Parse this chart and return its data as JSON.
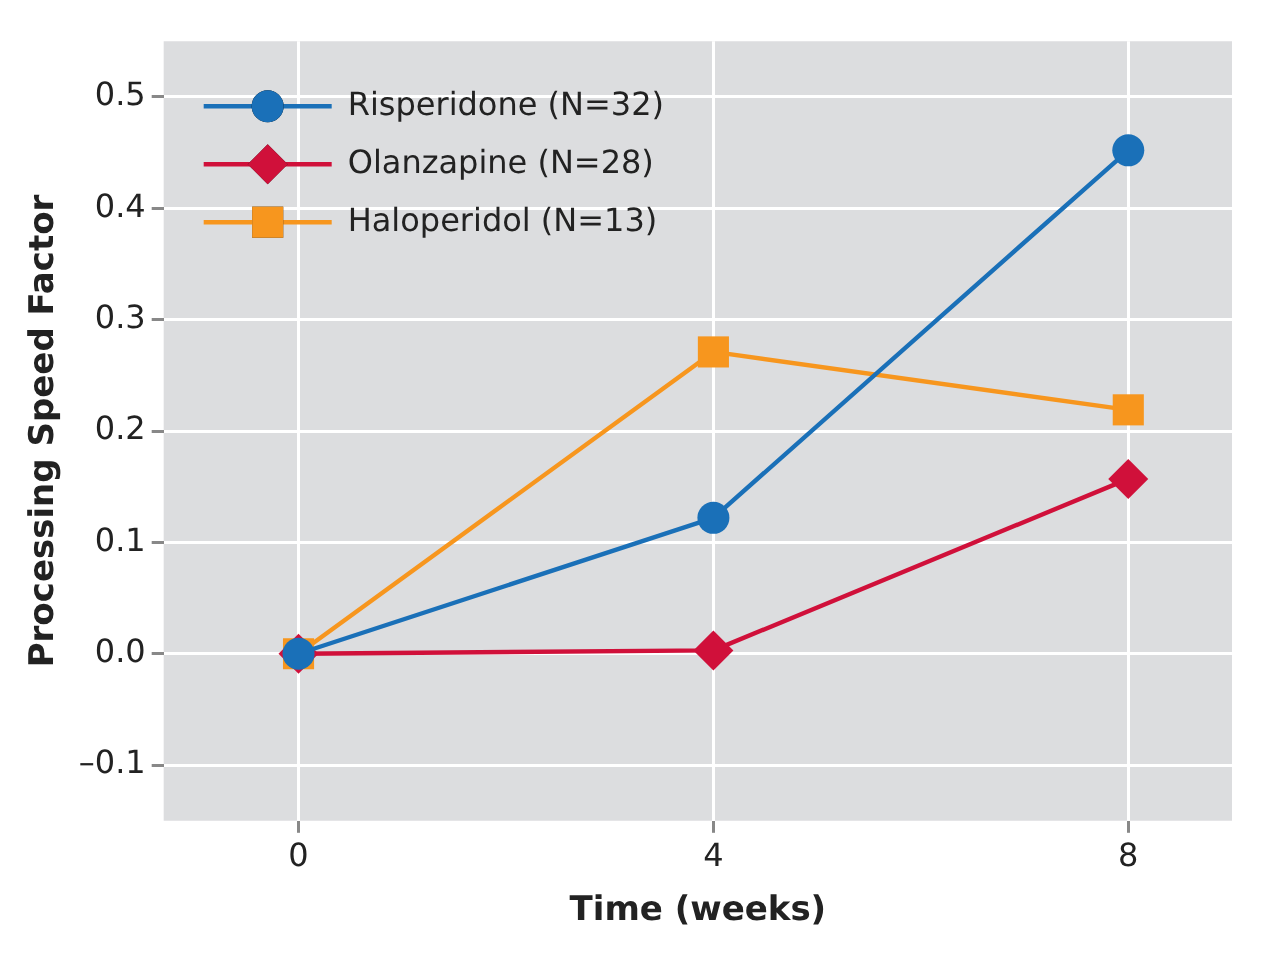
{
  "chart_data": {
    "type": "line",
    "xlabel": "Time (weeks)",
    "ylabel": "Processing Speed Factor",
    "x": [
      0,
      4,
      8
    ],
    "series": [
      {
        "name": "Risperidone (N=32)",
        "color": "#1a70b8",
        "marker": "circle",
        "values": [
          0,
          0.122,
          0.452
        ]
      },
      {
        "name": "Olanzapine (N=28)",
        "color": "#d0103a",
        "marker": "diamond",
        "values": [
          0,
          0.003,
          0.157
        ]
      },
      {
        "name": "Haloperidol (N=13)",
        "color": "#f7961e",
        "marker": "square",
        "values": [
          0,
          0.271,
          0.219
        ]
      }
    ],
    "xlim": [
      -1.3,
      9
    ],
    "xticks": [
      0,
      4,
      8
    ],
    "ylim": [
      -0.15,
      0.55
    ],
    "yticks": [
      {
        "value": -0.1,
        "label": "–0.1"
      },
      {
        "value": 0,
        "label": "0.0"
      },
      0.1,
      0.2,
      0.3,
      0.4,
      0.5
    ],
    "grid": true,
    "legend": "top left"
  }
}
